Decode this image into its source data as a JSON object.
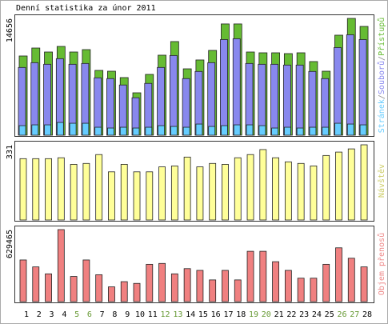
{
  "title": "Denní statistika za únor 2011",
  "chart_data": [
    {
      "type": "bar",
      "legend_separator": "/",
      "ylim": [
        0,
        14656
      ],
      "yticks": [
        14656
      ],
      "series": [
        {
          "name": "Přístupů",
          "color": "#66bb33",
          "values": [
            9940,
            10940,
            10440,
            11140,
            10440,
            10740,
            8130,
            8030,
            7230,
            5320,
            7630,
            10040,
            11750,
            8330,
            9440,
            10640,
            13960,
            13960,
            10440,
            10340,
            10340,
            10240,
            10340,
            9240,
            8030,
            12550,
            14656,
            13650
          ]
        },
        {
          "name": "Souborů",
          "color": "#8888ee",
          "values": [
            8500,
            9100,
            8900,
            9600,
            8900,
            9000,
            7200,
            7100,
            6300,
            4700,
            6500,
            8500,
            10000,
            7100,
            8000,
            9100,
            12000,
            12100,
            9000,
            8900,
            8900,
            8800,
            8800,
            8000,
            7100,
            11000,
            12600,
            12000
          ]
        },
        {
          "name": "Stránek",
          "color": "#66ccff",
          "values": [
            1200,
            1300,
            1300,
            1600,
            1500,
            1500,
            1000,
            900,
            1000,
            900,
            1000,
            1200,
            1100,
            1000,
            1400,
            1100,
            1200,
            1300,
            1300,
            1200,
            900,
            1000,
            900,
            1000,
            1000,
            1500,
            1400,
            1300
          ]
        }
      ]
    },
    {
      "type": "bar",
      "ylim": [
        0,
        331
      ],
      "yticks": [
        331
      ],
      "series": [
        {
          "name": "Návštěv",
          "color": "#ffff99",
          "legend_color": "#cccc66",
          "values": [
            270,
            270,
            270,
            274,
            245,
            249,
            288,
            212,
            245,
            212,
            212,
            234,
            238,
            277,
            234,
            249,
            245,
            274,
            288,
            310,
            274,
            256,
            249,
            238,
            284,
            299,
            313,
            331
          ]
        }
      ]
    },
    {
      "type": "bar",
      "ylim": [
        0,
        629465
      ],
      "yticks": [
        629465
      ],
      "categories": [
        "1",
        "2",
        "3",
        "4",
        "5",
        "6",
        "7",
        "8",
        "9",
        "10",
        "11",
        "12",
        "13",
        "14",
        "15",
        "16",
        "17",
        "18",
        "19",
        "20",
        "21",
        "22",
        "23",
        "24",
        "25",
        "26",
        "27",
        "28"
      ],
      "category_colors": [
        "#000000",
        "#000000",
        "#000000",
        "#000000",
        "#669933",
        "#669933",
        "#000000",
        "#000000",
        "#000000",
        "#000000",
        "#000000",
        "#669933",
        "#669933",
        "#000000",
        "#000000",
        "#000000",
        "#000000",
        "#000000",
        "#669933",
        "#669933",
        "#000000",
        "#000000",
        "#000000",
        "#000000",
        "#000000",
        "#669933",
        "#669933",
        "#000000"
      ],
      "series": [
        {
          "name": "Objem přenosů",
          "color": "#f08080",
          "legend_color": "#ee8888",
          "values": [
            364000,
            303400,
            242700,
            629465,
            219900,
            364000,
            235100,
            128900,
            174400,
            159200,
            326100,
            333700,
            242700,
            288200,
            273000,
            189600,
            273000,
            189600,
            439900,
            439900,
            348900,
            273000,
            204800,
            204800,
            326100,
            470200,
            379200,
            303400
          ]
        }
      ]
    }
  ]
}
